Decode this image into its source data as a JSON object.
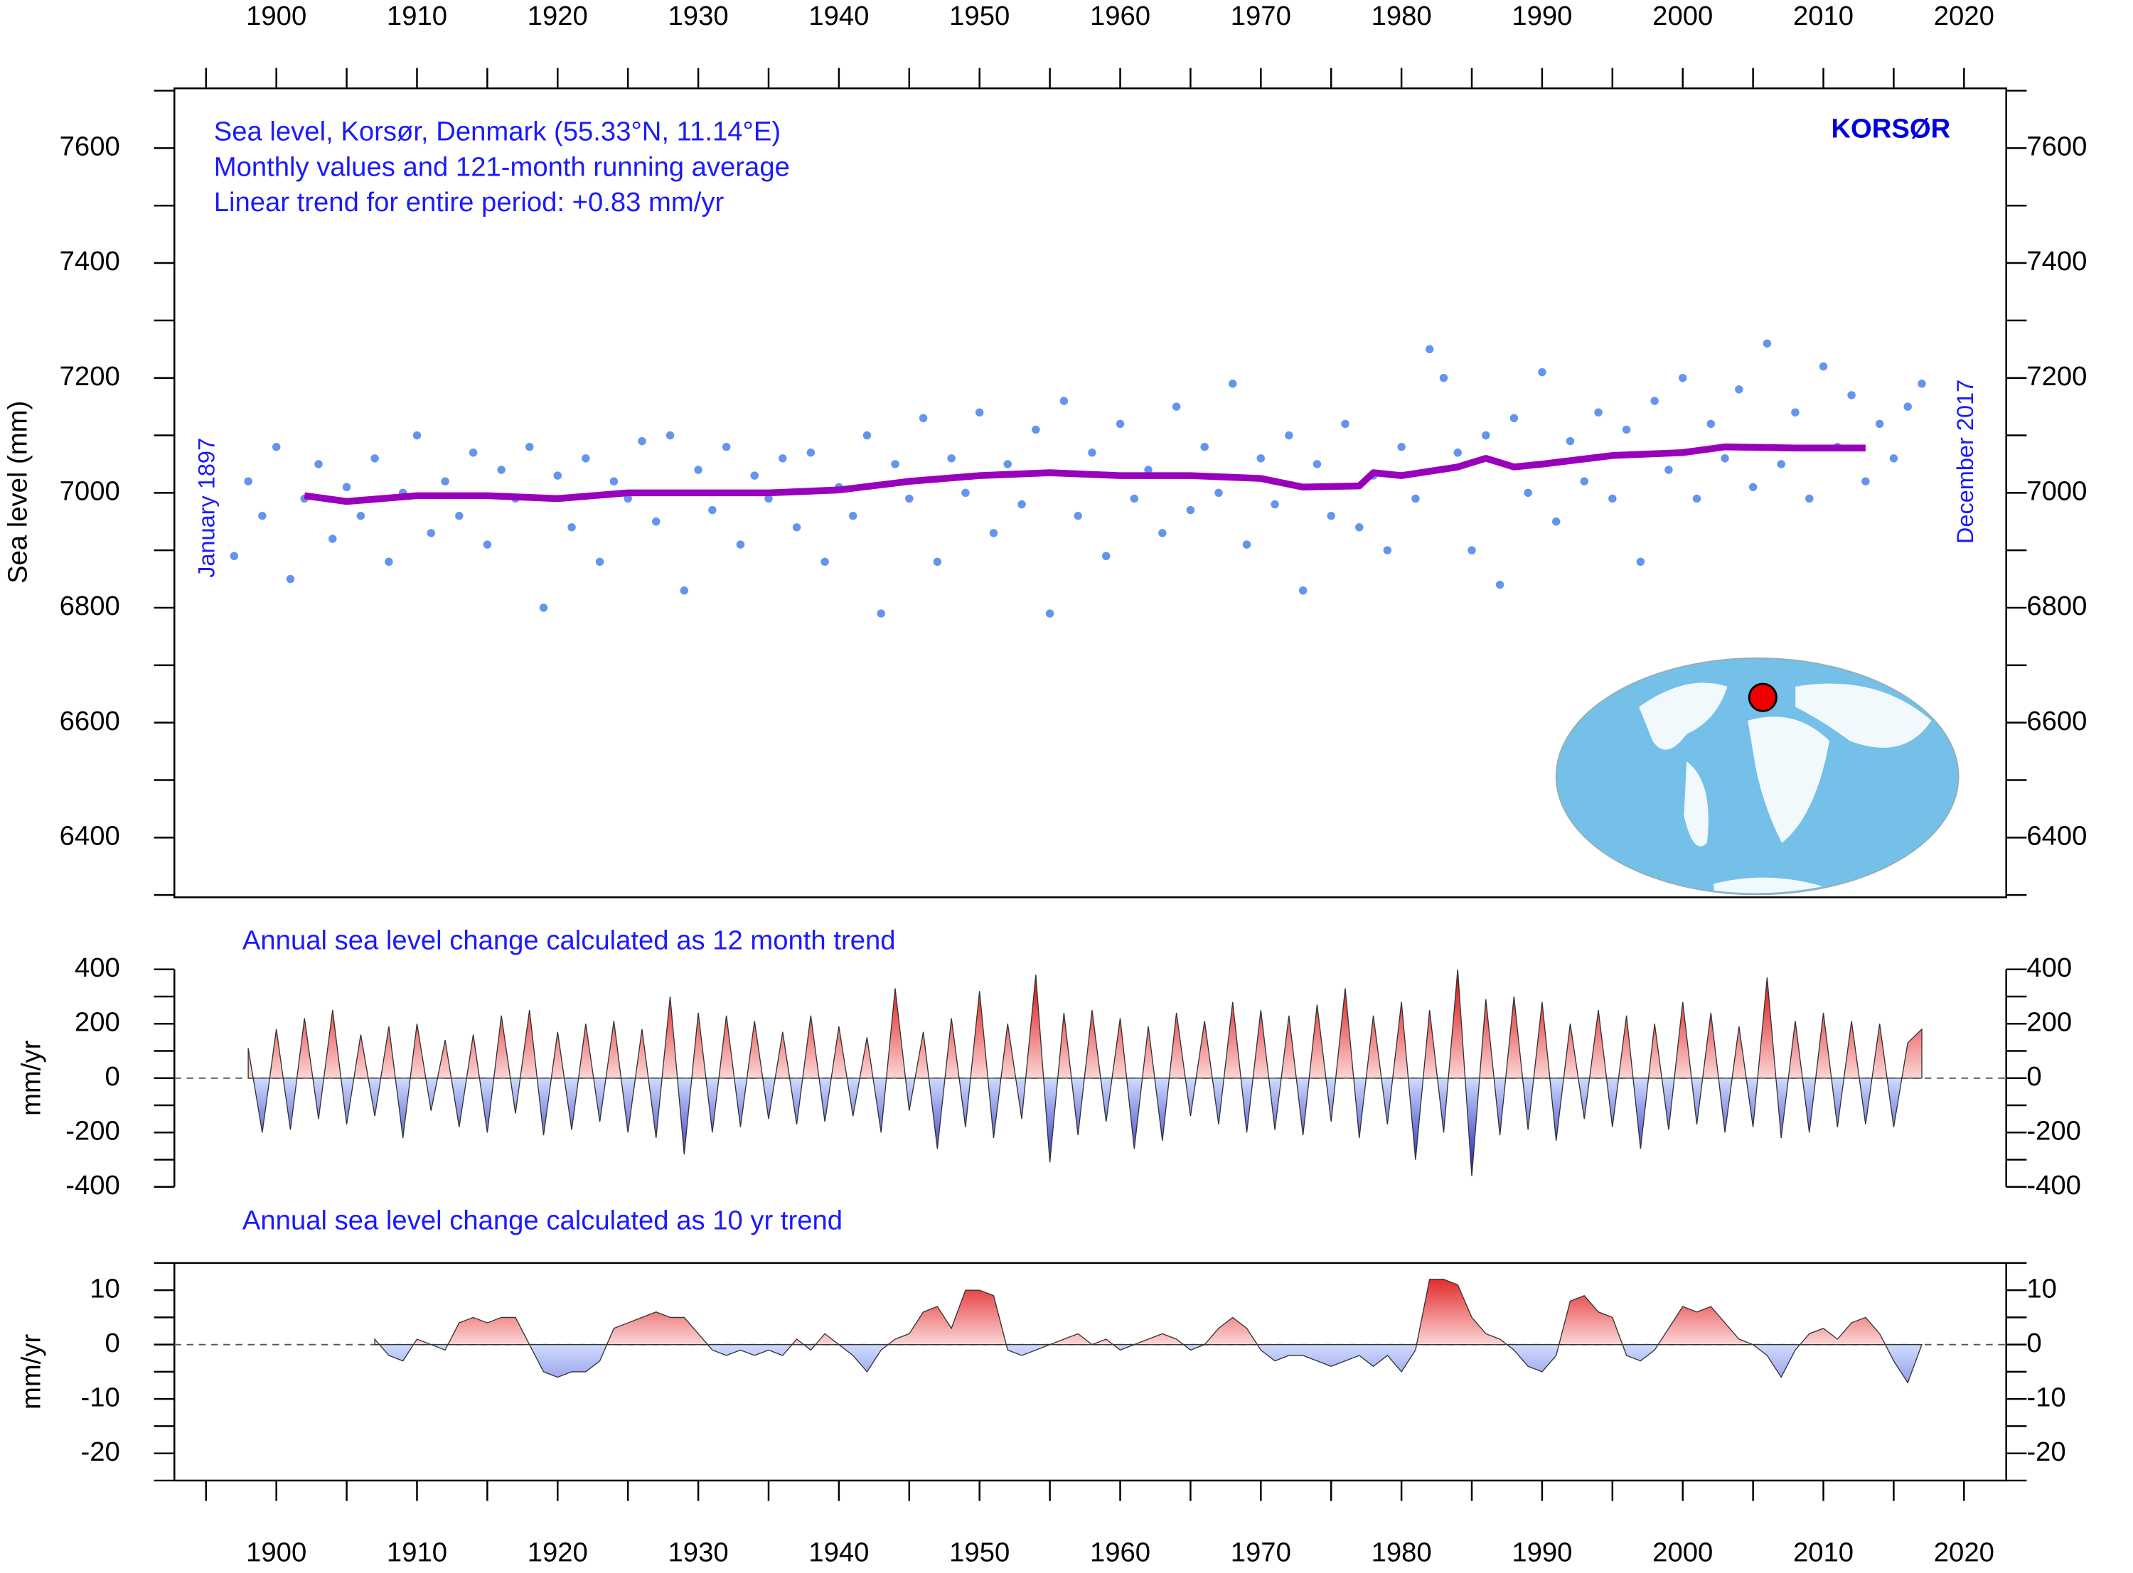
{
  "chart_data": [
    {
      "type": "scatter",
      "title": "Sea level, Korsør, Denmark (55.33°N, 11.14°E)",
      "subtitle": [
        "Monthly values and 121-month running average",
        "Linear trend for entire period: +0.83 mm/yr"
      ],
      "station": "KORSØR",
      "annotations": [
        "January 1897",
        "December 2017"
      ],
      "ylabel": "Sea level (mm)",
      "xlim": [
        1892.75,
        2023
      ],
      "xticks": [
        1900,
        1910,
        1920,
        1930,
        1940,
        1950,
        1960,
        1970,
        1980,
        1990,
        2000,
        2010,
        2020
      ],
      "xminorticks": [
        1895,
        1905,
        1915,
        1925,
        1935,
        1945,
        1955,
        1965,
        1975,
        1985,
        1995,
        2005,
        2015
      ],
      "ylim": [
        6296,
        7704
      ],
      "yticks": [
        6400,
        6600,
        6800,
        7000,
        7200,
        7400,
        7600
      ],
      "yminorticks": [
        6300,
        6500,
        6700,
        6900,
        7100,
        7300,
        7500,
        7700
      ],
      "points": {
        "color": "#6495ed",
        "x": [
          1897,
          1898,
          1899,
          1900,
          1901,
          1902,
          1903,
          1904,
          1905,
          1906,
          1907,
          1908,
          1909,
          1910,
          1911,
          1912,
          1913,
          1914,
          1915,
          1916,
          1917,
          1918,
          1919,
          1920,
          1921,
          1922,
          1923,
          1924,
          1925,
          1926,
          1927,
          1928,
          1929,
          1930,
          1931,
          1932,
          1933,
          1934,
          1935,
          1936,
          1937,
          1938,
          1939,
          1940,
          1941,
          1942,
          1943,
          1944,
          1945,
          1946,
          1947,
          1948,
          1949,
          1950,
          1951,
          1952,
          1953,
          1954,
          1955,
          1956,
          1957,
          1958,
          1959,
          1960,
          1961,
          1962,
          1963,
          1964,
          1965,
          1966,
          1967,
          1968,
          1969,
          1970,
          1971,
          1972,
          1973,
          1974,
          1975,
          1976,
          1977,
          1978,
          1979,
          1980,
          1981,
          1982,
          1983,
          1984,
          1985,
          1986,
          1987,
          1988,
          1989,
          1990,
          1991,
          1992,
          1993,
          1994,
          1995,
          1996,
          1997,
          1998,
          1999,
          2000,
          2001,
          2002,
          2003,
          2004,
          2005,
          2006,
          2007,
          2008,
          2009,
          2010,
          2011,
          2012,
          2013,
          2014,
          2015,
          2016,
          2017
        ],
        "values": [
          6890,
          7020,
          6960,
          7080,
          6850,
          6990,
          7050,
          6920,
          7010,
          6960,
          7060,
          6880,
          7000,
          7100,
          6930,
          7020,
          6960,
          7070,
          6910,
          7040,
          6990,
          7080,
          6800,
          7030,
          6940,
          7060,
          6880,
          7020,
          6990,
          7090,
          6950,
          7100,
          6830,
          7040,
          6970,
          7080,
          6910,
          7030,
          6990,
          7060,
          6940,
          7070,
          6880,
          7010,
          6960,
          7100,
          6790,
          7050,
          6990,
          7130,
          6880,
          7060,
          7000,
          7140,
          6930,
          7050,
          6980,
          7110,
          6790,
          7160,
          6960,
          7070,
          6890,
          7120,
          6990,
          7040,
          6930,
          7150,
          6970,
          7080,
          7000,
          7190,
          6910,
          7060,
          6980,
          7100,
          6830,
          7050,
          6960,
          7120,
          6940,
          7030,
          6900,
          7080,
          6990,
          7250,
          7200,
          7070,
          6900,
          7100,
          6840,
          7130,
          7000,
          7210,
          6950,
          7090,
          7020,
          7140,
          6990,
          7110,
          6880,
          7160,
          7040,
          7200,
          6990,
          7120,
          7060,
          7180,
          7010,
          7260,
          7050,
          7140,
          6990,
          7220,
          7080,
          7170,
          7020,
          7120,
          7060,
          7150,
          7190
        ]
      },
      "average": {
        "color": "#9900bb",
        "x": [
          1902,
          1905,
          1910,
          1915,
          1920,
          1925,
          1930,
          1935,
          1940,
          1945,
          1950,
          1955,
          1960,
          1965,
          1970,
          1973,
          1977,
          1978,
          1980,
          1984,
          1986,
          1988,
          1990,
          1995,
          2000,
          2003,
          2008,
          2013
        ],
        "values": [
          6995,
          6985,
          6995,
          6995,
          6990,
          7000,
          7000,
          7000,
          7005,
          7020,
          7030,
          7035,
          7030,
          7030,
          7025,
          7010,
          7012,
          7035,
          7030,
          7045,
          7060,
          7045,
          7050,
          7065,
          7070,
          7080,
          7078,
          7078
        ]
      }
    },
    {
      "type": "area",
      "title": "Annual sea level change calculated as 12 month trend",
      "ylabel": "mm/yr",
      "xlim": [
        1892.75,
        2023
      ],
      "ylim": [
        -400,
        400
      ],
      "yticks": [
        -400,
        -200,
        0,
        200,
        400
      ],
      "yminorticks": [
        -300,
        -100,
        100,
        300
      ],
      "x": [
        1898,
        1899,
        1900,
        1901,
        1902,
        1903,
        1904,
        1905,
        1906,
        1907,
        1908,
        1909,
        1910,
        1911,
        1912,
        1913,
        1914,
        1915,
        1916,
        1917,
        1918,
        1919,
        1920,
        1921,
        1922,
        1923,
        1924,
        1925,
        1926,
        1927,
        1928,
        1929,
        1930,
        1931,
        1932,
        1933,
        1934,
        1935,
        1936,
        1937,
        1938,
        1939,
        1940,
        1941,
        1942,
        1943,
        1944,
        1945,
        1946,
        1947,
        1948,
        1949,
        1950,
        1951,
        1952,
        1953,
        1954,
        1955,
        1956,
        1957,
        1958,
        1959,
        1960,
        1961,
        1962,
        1963,
        1964,
        1965,
        1966,
        1967,
        1968,
        1969,
        1970,
        1971,
        1972,
        1973,
        1974,
        1975,
        1976,
        1977,
        1978,
        1979,
        1980,
        1981,
        1982,
        1983,
        1984,
        1985,
        1986,
        1987,
        1988,
        1989,
        1990,
        1991,
        1992,
        1993,
        1994,
        1995,
        1996,
        1997,
        1998,
        1999,
        2000,
        2001,
        2002,
        2003,
        2004,
        2005,
        2006,
        2007,
        2008,
        2009,
        2010,
        2011,
        2012,
        2013,
        2014,
        2015,
        2016,
        2017
      ],
      "values": [
        110,
        -200,
        180,
        -190,
        220,
        -150,
        250,
        -170,
        160,
        -140,
        190,
        -220,
        200,
        -120,
        140,
        -180,
        160,
        -200,
        230,
        -130,
        250,
        -210,
        170,
        -190,
        200,
        -160,
        210,
        -200,
        180,
        -220,
        300,
        -280,
        240,
        -200,
        230,
        -180,
        210,
        -150,
        170,
        -170,
        230,
        -160,
        190,
        -140,
        150,
        -200,
        330,
        -120,
        170,
        -260,
        220,
        -180,
        320,
        -220,
        200,
        -150,
        380,
        -310,
        240,
        -210,
        250,
        -160,
        220,
        -260,
        190,
        -230,
        240,
        -140,
        210,
        -170,
        280,
        -200,
        250,
        -190,
        230,
        -210,
        270,
        -160,
        330,
        -220,
        230,
        -170,
        280,
        -300,
        250,
        -200,
        400,
        -360,
        290,
        -210,
        300,
        -190,
        280,
        -230,
        200,
        -150,
        250,
        -180,
        230,
        -260,
        200,
        -190,
        280,
        -170,
        240,
        -200,
        190,
        -180,
        370,
        -220,
        210,
        -200,
        240,
        -180,
        210,
        -170,
        200,
        -180,
        130,
        180
      ]
    },
    {
      "type": "area",
      "title": "Annual sea level change calculated as 10 yr trend",
      "ylabel": "mm/yr",
      "xlim": [
        1892.75,
        2023
      ],
      "ylim": [
        -25,
        15
      ],
      "yticks": [
        -20,
        -10,
        0,
        10
      ],
      "yminorticks": [
        -25,
        -15,
        -5,
        5,
        15
      ],
      "xticks": [
        1900,
        1910,
        1920,
        1930,
        1940,
        1950,
        1960,
        1970,
        1980,
        1990,
        2000,
        2010,
        2020
      ],
      "xminorticks": [
        1895,
        1905,
        1915,
        1925,
        1935,
        1945,
        1955,
        1965,
        1975,
        1985,
        1995,
        2005,
        2015
      ],
      "x": [
        1907,
        1908,
        1909,
        1910,
        1911,
        1912,
        1913,
        1914,
        1915,
        1916,
        1917,
        1918,
        1919,
        1920,
        1921,
        1922,
        1923,
        1924,
        1925,
        1926,
        1927,
        1928,
        1929,
        1930,
        1931,
        1932,
        1933,
        1934,
        1935,
        1936,
        1937,
        1938,
        1939,
        1940,
        1941,
        1942,
        1943,
        1944,
        1945,
        1946,
        1947,
        1948,
        1949,
        1950,
        1951,
        1952,
        1953,
        1954,
        1955,
        1956,
        1957,
        1958,
        1959,
        1960,
        1961,
        1962,
        1963,
        1964,
        1965,
        1966,
        1967,
        1968,
        1969,
        1970,
        1971,
        1972,
        1973,
        1974,
        1975,
        1976,
        1977,
        1978,
        1979,
        1980,
        1981,
        1982,
        1983,
        1984,
        1985,
        1986,
        1987,
        1988,
        1989,
        1990,
        1991,
        1992,
        1993,
        1994,
        1995,
        1996,
        1997,
        1998,
        1999,
        2000,
        2001,
        2002,
        2003,
        2004,
        2005,
        2006,
        2007,
        2008,
        2009,
        2010,
        2011,
        2012,
        2013,
        2014,
        2015,
        2016,
        2017
      ],
      "values": [
        1,
        -2,
        -3,
        1,
        0,
        -1,
        4,
        5,
        4,
        5,
        5,
        0,
        -5,
        -6,
        -5,
        -5,
        -3,
        3,
        4,
        5,
        6,
        5,
        5,
        2,
        -1,
        -2,
        -1,
        -2,
        -1,
        -2,
        1,
        -1,
        2,
        0,
        -2,
        -5,
        -1,
        1,
        2,
        6,
        7,
        3,
        10,
        10,
        9,
        -1,
        -2,
        -1,
        0,
        1,
        2,
        0,
        1,
        -1,
        0,
        1,
        2,
        1,
        -1,
        0,
        3,
        5,
        3,
        -1,
        -3,
        -2,
        -2,
        -3,
        -4,
        -3,
        -2,
        -4,
        -2,
        -5,
        -1,
        12,
        12,
        11,
        5,
        2,
        1,
        -1,
        -4,
        -5,
        -2,
        8,
        9,
        6,
        5,
        -2,
        -3,
        -1,
        3,
        7,
        6,
        7,
        4,
        1,
        0,
        -2,
        -6,
        -1,
        2,
        3,
        1,
        4,
        5,
        2,
        -3,
        -7,
        0
      ]
    }
  ]
}
